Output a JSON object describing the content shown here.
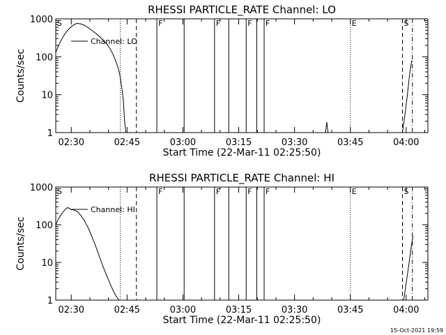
{
  "chart_data": [
    {
      "type": "line",
      "title": "RHESSI PARTICLE_RATE Channel: LO",
      "xlabel": "Start Time (22-Mar-11 02:25:50)",
      "ylabel": "Counts/sec",
      "y_scale": "log",
      "ylim": [
        1,
        1000
      ],
      "xlim": [
        "02:25:50",
        "04:05:50"
      ],
      "x_ticks": [
        "02:30",
        "02:45",
        "03:00",
        "03:15",
        "03:30",
        "03:45",
        "04:00"
      ],
      "y_ticks": [
        "1",
        "10",
        "100",
        "1000"
      ],
      "legend": {
        "entries": [
          "Channel: LO"
        ],
        "placement": "top-left"
      },
      "series": [
        {
          "name": "Channel: LO",
          "segments": [
            {
              "x": [
                "02:25:50",
                "02:26:30",
                "02:27:30",
                "02:28:30",
                "02:29:30",
                "02:30:30",
                "02:31:30",
                "02:32:30",
                "02:33:30",
                "02:34:30",
                "02:35:30",
                "02:36:30",
                "02:37:30",
                "02:38:30",
                "02:39:30",
                "02:40:30",
                "02:41:30",
                "02:42:30",
                "02:43:00",
                "02:43:30",
                "02:44:00",
                "02:44:20",
                "02:44:40"
              ],
              "y": [
                130,
                190,
                300,
                430,
                560,
                680,
                760,
                740,
                680,
                590,
                500,
                420,
                350,
                280,
                220,
                160,
                100,
                55,
                35,
                18,
                7,
                2,
                1
              ]
            },
            {
              "x": [
                "03:38:20",
                "03:38:40",
                "03:39:00"
              ],
              "y": [
                1,
                1.9,
                1
              ]
            },
            {
              "x": [
                "03:59:00",
                "03:59:40",
                "04:00:20",
                "04:01:00",
                "04:01:30"
              ],
              "y": [
                1,
                3,
                10,
                40,
                80
              ]
            }
          ]
        }
      ],
      "event_markers": [
        {
          "time": "02:43:10",
          "style": "dotted",
          "label": ""
        },
        {
          "time": "02:47:30",
          "style": "dashed",
          "label": ""
        },
        {
          "time": "02:53:00",
          "style": "solid",
          "label": "F"
        },
        {
          "time": "03:00:20",
          "style": "solid",
          "label": ""
        },
        {
          "time": "03:08:30",
          "style": "solid",
          "label": "F"
        },
        {
          "time": "03:12:20",
          "style": "solid",
          "label": ""
        },
        {
          "time": "03:17:00",
          "style": "solid",
          "label": "F"
        },
        {
          "time": "03:19:50",
          "style": "solid",
          "label": ""
        },
        {
          "time": "03:21:50",
          "style": "solid",
          "label": "F"
        },
        {
          "time": "03:45:00",
          "style": "dotted",
          "label": "E"
        },
        {
          "time": "03:59:00",
          "style": "dashed",
          "label": "S"
        },
        {
          "time": "04:01:40",
          "style": "dashdot",
          "label": ""
        }
      ],
      "corner_label": "S",
      "grid": false
    },
    {
      "type": "line",
      "title": "RHESSI PARTICLE_RATE Channel: HI",
      "xlabel": "Start Time (22-Mar-11 02:25:50)",
      "ylabel": "Counts/sec",
      "y_scale": "log",
      "ylim": [
        1,
        1000
      ],
      "xlim": [
        "02:25:50",
        "04:05:50"
      ],
      "x_ticks": [
        "02:30",
        "02:45",
        "03:00",
        "03:15",
        "03:30",
        "03:45",
        "04:00"
      ],
      "y_ticks": [
        "1",
        "10",
        "100",
        "1000"
      ],
      "legend": {
        "entries": [
          "Channel: HI"
        ],
        "placement": "top-left"
      },
      "series": [
        {
          "name": "Channel: HI",
          "segments": [
            {
              "x": [
                "02:25:50",
                "02:26:30",
                "02:27:30",
                "02:28:30",
                "02:29:00",
                "02:29:30",
                "02:30:00",
                "02:30:30",
                "02:31:30",
                "02:32:30",
                "02:33:30",
                "02:34:30",
                "02:35:30",
                "02:36:30",
                "02:37:30",
                "02:38:30",
                "02:39:30",
                "02:40:30",
                "02:41:30",
                "02:42:00",
                "02:42:30",
                "02:42:50"
              ],
              "y": [
                100,
                140,
                200,
                260,
                285,
                270,
                250,
                250,
                230,
                180,
                130,
                85,
                50,
                28,
                15,
                8,
                4.5,
                2.6,
                1.6,
                1.3,
                1.1,
                1
              ]
            },
            {
              "x": [
                "03:59:20",
                "04:00:00",
                "04:00:40",
                "04:01:20",
                "04:01:50"
              ],
              "y": [
                1,
                2.8,
                8,
                25,
                50
              ]
            }
          ]
        }
      ],
      "event_markers": [
        {
          "time": "02:43:10",
          "style": "dotted",
          "label": ""
        },
        {
          "time": "02:47:30",
          "style": "dashed",
          "label": ""
        },
        {
          "time": "02:53:00",
          "style": "solid",
          "label": "F"
        },
        {
          "time": "03:00:20",
          "style": "solid",
          "label": ""
        },
        {
          "time": "03:08:30",
          "style": "solid",
          "label": "F"
        },
        {
          "time": "03:12:20",
          "style": "solid",
          "label": ""
        },
        {
          "time": "03:17:00",
          "style": "solid",
          "label": "F"
        },
        {
          "time": "03:19:50",
          "style": "solid",
          "label": ""
        },
        {
          "time": "03:21:50",
          "style": "solid",
          "label": "F"
        },
        {
          "time": "03:45:00",
          "style": "dotted",
          "label": "E"
        },
        {
          "time": "03:59:00",
          "style": "dashed",
          "label": "S"
        },
        {
          "time": "04:01:40",
          "style": "dashdot",
          "label": ""
        }
      ],
      "corner_label": "S",
      "grid": false
    }
  ],
  "footer": {
    "timestamp": "15-Oct-2021 19:59"
  }
}
